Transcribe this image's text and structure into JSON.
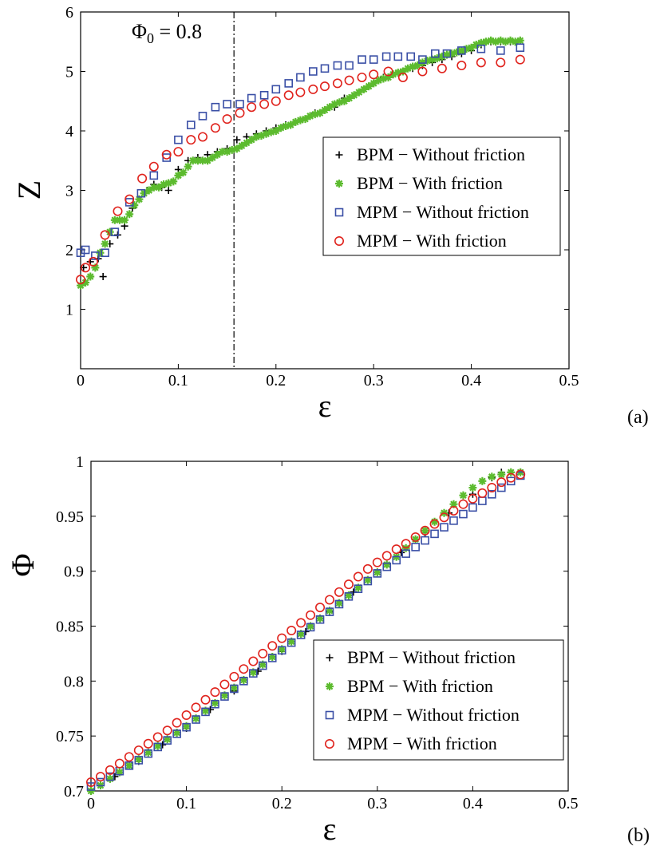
{
  "chart_data": [
    {
      "type": "scatter",
      "panel_label": "(a)",
      "xlabel": "ε",
      "ylabel": "Z",
      "xlim": [
        0,
        0.5
      ],
      "ylim": [
        0,
        6
      ],
      "xticks": [
        "0",
        "0.1",
        "0.2",
        "0.3",
        "0.4",
        "0.5"
      ],
      "yticks": [
        "1",
        "2",
        "3",
        "4",
        "5",
        "6"
      ],
      "annotation": {
        "text_main": "Φ",
        "text_sub": "0",
        "text_rest": " = 0.8",
        "x": 0.157
      },
      "legend_position": "right",
      "series": [
        {
          "name": "BPM − Without friction",
          "marker": "plus",
          "color": "#000000",
          "x": [
            0.003,
            0.01,
            0.018,
            0.023,
            0.03,
            0.038,
            0.045,
            0.053,
            0.06,
            0.068,
            0.075,
            0.083,
            0.09,
            0.1,
            0.11,
            0.12,
            0.13,
            0.14,
            0.15,
            0.16,
            0.17,
            0.18,
            0.19,
            0.2,
            0.21,
            0.22,
            0.23,
            0.24,
            0.25,
            0.26,
            0.27,
            0.28,
            0.29,
            0.3,
            0.31,
            0.32,
            0.33,
            0.34,
            0.35,
            0.36,
            0.37,
            0.38,
            0.39,
            0.4,
            0.41,
            0.42,
            0.43,
            0.44,
            0.45
          ],
          "y": [
            1.7,
            1.8,
            1.85,
            1.55,
            2.1,
            2.25,
            2.4,
            2.7,
            2.85,
            3.0,
            3.1,
            3.05,
            3.0,
            3.35,
            3.5,
            3.55,
            3.6,
            3.65,
            3.7,
            3.85,
            3.9,
            3.95,
            4.0,
            4.05,
            4.1,
            4.15,
            4.2,
            4.3,
            4.35,
            4.4,
            4.55,
            4.6,
            4.7,
            4.8,
            4.9,
            4.95,
            5.0,
            5.05,
            5.1,
            5.15,
            5.2,
            5.25,
            5.3,
            5.35,
            5.45,
            5.5,
            5.5,
            5.5,
            5.52
          ]
        },
        {
          "name": "BPM − With friction",
          "marker": "asterisk",
          "color": "#5cbb2e",
          "x": [
            0,
            0.005,
            0.01,
            0.015,
            0.02,
            0.025,
            0.03,
            0.035,
            0.04,
            0.045,
            0.05,
            0.055,
            0.06,
            0.065,
            0.07,
            0.075,
            0.08,
            0.085,
            0.09,
            0.095,
            0.1,
            0.105,
            0.11,
            0.115,
            0.12,
            0.125,
            0.13,
            0.135,
            0.14,
            0.145,
            0.15,
            0.155,
            0.16,
            0.165,
            0.17,
            0.175,
            0.18,
            0.185,
            0.19,
            0.195,
            0.2,
            0.205,
            0.21,
            0.215,
            0.22,
            0.225,
            0.23,
            0.235,
            0.24,
            0.245,
            0.25,
            0.255,
            0.26,
            0.265,
            0.27,
            0.275,
            0.28,
            0.285,
            0.29,
            0.295,
            0.3,
            0.305,
            0.31,
            0.315,
            0.32,
            0.325,
            0.33,
            0.335,
            0.34,
            0.345,
            0.35,
            0.355,
            0.36,
            0.365,
            0.37,
            0.375,
            0.38,
            0.385,
            0.39,
            0.395,
            0.4,
            0.405,
            0.41,
            0.415,
            0.42,
            0.425,
            0.43,
            0.435,
            0.44,
            0.445,
            0.45
          ],
          "y": [
            1.4,
            1.45,
            1.55,
            1.7,
            1.95,
            2.1,
            2.3,
            2.5,
            2.5,
            2.5,
            2.6,
            2.75,
            2.85,
            2.95,
            3.0,
            3.05,
            3.05,
            3.1,
            3.12,
            3.15,
            3.25,
            3.3,
            3.4,
            3.5,
            3.5,
            3.5,
            3.5,
            3.55,
            3.6,
            3.65,
            3.65,
            3.68,
            3.7,
            3.75,
            3.8,
            3.85,
            3.9,
            3.92,
            3.95,
            3.98,
            4.0,
            4.05,
            4.08,
            4.1,
            4.15,
            4.18,
            4.2,
            4.25,
            4.28,
            4.3,
            4.35,
            4.4,
            4.45,
            4.48,
            4.5,
            4.55,
            4.6,
            4.65,
            4.7,
            4.75,
            4.8,
            4.85,
            4.88,
            4.9,
            4.95,
            4.98,
            5.0,
            5.05,
            5.08,
            5.1,
            5.15,
            5.18,
            5.2,
            5.22,
            5.25,
            5.28,
            5.3,
            5.32,
            5.35,
            5.38,
            5.4,
            5.45,
            5.48,
            5.5,
            5.52,
            5.5,
            5.52,
            5.5,
            5.52,
            5.5,
            5.52
          ]
        },
        {
          "name": "MPM − Without friction",
          "marker": "square",
          "color": "#3a4fa6",
          "x": [
            0,
            0.005,
            0.015,
            0.025,
            0.035,
            0.05,
            0.062,
            0.075,
            0.088,
            0.1,
            0.113,
            0.125,
            0.138,
            0.15,
            0.163,
            0.175,
            0.188,
            0.2,
            0.213,
            0.225,
            0.238,
            0.25,
            0.263,
            0.275,
            0.288,
            0.3,
            0.313,
            0.325,
            0.338,
            0.35,
            0.363,
            0.375,
            0.39,
            0.41,
            0.43,
            0.45
          ],
          "y": [
            1.95,
            2.0,
            1.9,
            1.95,
            2.3,
            2.8,
            2.95,
            3.25,
            3.55,
            3.85,
            4.1,
            4.25,
            4.4,
            4.45,
            4.45,
            4.55,
            4.6,
            4.7,
            4.8,
            4.9,
            5.0,
            5.05,
            5.1,
            5.1,
            5.2,
            5.2,
            5.25,
            5.25,
            5.25,
            5.2,
            5.3,
            5.3,
            5.35,
            5.38,
            5.35,
            5.4
          ]
        },
        {
          "name": "MPM − With friction",
          "marker": "circle",
          "color": "#e0231d",
          "x": [
            0,
            0.005,
            0.013,
            0.025,
            0.038,
            0.05,
            0.063,
            0.075,
            0.088,
            0.1,
            0.113,
            0.125,
            0.138,
            0.15,
            0.163,
            0.175,
            0.188,
            0.2,
            0.213,
            0.225,
            0.238,
            0.25,
            0.263,
            0.275,
            0.288,
            0.3,
            0.315,
            0.33,
            0.35,
            0.37,
            0.39,
            0.41,
            0.43,
            0.45
          ],
          "y": [
            1.5,
            1.7,
            1.8,
            2.25,
            2.65,
            2.85,
            3.2,
            3.4,
            3.6,
            3.65,
            3.85,
            3.9,
            4.05,
            4.2,
            4.3,
            4.4,
            4.45,
            4.5,
            4.6,
            4.65,
            4.7,
            4.75,
            4.8,
            4.85,
            4.9,
            4.95,
            5.0,
            4.9,
            5.0,
            5.05,
            5.1,
            5.15,
            5.15,
            5.2
          ]
        }
      ]
    },
    {
      "type": "scatter",
      "panel_label": "(b)",
      "xlabel": "ε",
      "ylabel": "Φ",
      "xlim": [
        0,
        0.5
      ],
      "ylim": [
        0.7,
        1.0
      ],
      "xticks": [
        "0",
        "0.1",
        "0.2",
        "0.3",
        "0.4",
        "0.5"
      ],
      "yticks": [
        "0.7",
        "0.75",
        "0.8",
        "0.85",
        "0.9",
        "0.95",
        "1"
      ],
      "legend_position": "bottom-right",
      "series": [
        {
          "name": "BPM − Without friction",
          "marker": "plus",
          "color": "#000000",
          "x": [
            0,
            0.025,
            0.05,
            0.075,
            0.1,
            0.125,
            0.15,
            0.175,
            0.2,
            0.225,
            0.25,
            0.275,
            0.3,
            0.325,
            0.35,
            0.375,
            0.4,
            0.42,
            0.43,
            0.44,
            0.45
          ],
          "y": [
            0.7,
            0.713,
            0.727,
            0.742,
            0.757,
            0.774,
            0.791,
            0.809,
            0.827,
            0.845,
            0.863,
            0.881,
            0.899,
            0.917,
            0.935,
            0.953,
            0.97,
            0.985,
            0.99,
            0.99,
            0.99
          ]
        },
        {
          "name": "BPM − With friction",
          "marker": "asterisk",
          "color": "#5cbb2e",
          "x": [
            0,
            0.01,
            0.02,
            0.03,
            0.04,
            0.05,
            0.06,
            0.07,
            0.08,
            0.09,
            0.1,
            0.11,
            0.12,
            0.13,
            0.14,
            0.15,
            0.16,
            0.17,
            0.18,
            0.19,
            0.2,
            0.21,
            0.22,
            0.23,
            0.24,
            0.25,
            0.26,
            0.27,
            0.28,
            0.29,
            0.3,
            0.31,
            0.32,
            0.33,
            0.34,
            0.35,
            0.36,
            0.37,
            0.38,
            0.39,
            0.4,
            0.41,
            0.42,
            0.43,
            0.44,
            0.45
          ],
          "y": [
            0.7,
            0.705,
            0.711,
            0.717,
            0.723,
            0.729,
            0.735,
            0.741,
            0.747,
            0.753,
            0.759,
            0.766,
            0.773,
            0.78,
            0.787,
            0.794,
            0.801,
            0.808,
            0.815,
            0.822,
            0.829,
            0.836,
            0.843,
            0.85,
            0.857,
            0.864,
            0.871,
            0.878,
            0.885,
            0.892,
            0.899,
            0.906,
            0.913,
            0.921,
            0.929,
            0.937,
            0.945,
            0.953,
            0.961,
            0.969,
            0.976,
            0.982,
            0.986,
            0.988,
            0.99,
            0.99
          ]
        },
        {
          "name": "MPM − Without friction",
          "marker": "square",
          "color": "#3a4fa6",
          "x": [
            0,
            0.01,
            0.02,
            0.03,
            0.04,
            0.05,
            0.06,
            0.07,
            0.08,
            0.09,
            0.1,
            0.11,
            0.12,
            0.13,
            0.14,
            0.15,
            0.16,
            0.17,
            0.18,
            0.19,
            0.2,
            0.21,
            0.22,
            0.23,
            0.24,
            0.25,
            0.26,
            0.27,
            0.28,
            0.29,
            0.3,
            0.31,
            0.32,
            0.33,
            0.34,
            0.35,
            0.36,
            0.37,
            0.38,
            0.39,
            0.4,
            0.41,
            0.42,
            0.43,
            0.44,
            0.45
          ],
          "y": [
            0.704,
            0.708,
            0.713,
            0.718,
            0.723,
            0.728,
            0.734,
            0.74,
            0.746,
            0.752,
            0.758,
            0.765,
            0.772,
            0.779,
            0.786,
            0.793,
            0.8,
            0.807,
            0.814,
            0.821,
            0.828,
            0.835,
            0.842,
            0.849,
            0.856,
            0.863,
            0.87,
            0.877,
            0.884,
            0.891,
            0.898,
            0.904,
            0.91,
            0.916,
            0.922,
            0.928,
            0.934,
            0.94,
            0.946,
            0.952,
            0.958,
            0.964,
            0.97,
            0.976,
            0.982,
            0.987
          ]
        },
        {
          "name": "MPM − With friction",
          "marker": "circle",
          "color": "#e0231d",
          "x": [
            0,
            0.01,
            0.02,
            0.03,
            0.04,
            0.05,
            0.06,
            0.07,
            0.08,
            0.09,
            0.1,
            0.11,
            0.12,
            0.13,
            0.14,
            0.15,
            0.16,
            0.17,
            0.18,
            0.19,
            0.2,
            0.21,
            0.22,
            0.23,
            0.24,
            0.25,
            0.26,
            0.27,
            0.28,
            0.29,
            0.3,
            0.31,
            0.32,
            0.33,
            0.34,
            0.35,
            0.36,
            0.37,
            0.38,
            0.39,
            0.4,
            0.41,
            0.42,
            0.43,
            0.44,
            0.45
          ],
          "y": [
            0.708,
            0.713,
            0.719,
            0.725,
            0.731,
            0.737,
            0.743,
            0.749,
            0.755,
            0.762,
            0.769,
            0.776,
            0.783,
            0.79,
            0.797,
            0.804,
            0.811,
            0.818,
            0.825,
            0.832,
            0.839,
            0.846,
            0.853,
            0.86,
            0.867,
            0.874,
            0.881,
            0.888,
            0.895,
            0.902,
            0.908,
            0.914,
            0.92,
            0.925,
            0.931,
            0.937,
            0.943,
            0.949,
            0.955,
            0.961,
            0.966,
            0.971,
            0.976,
            0.981,
            0.985,
            0.988
          ]
        }
      ]
    }
  ]
}
